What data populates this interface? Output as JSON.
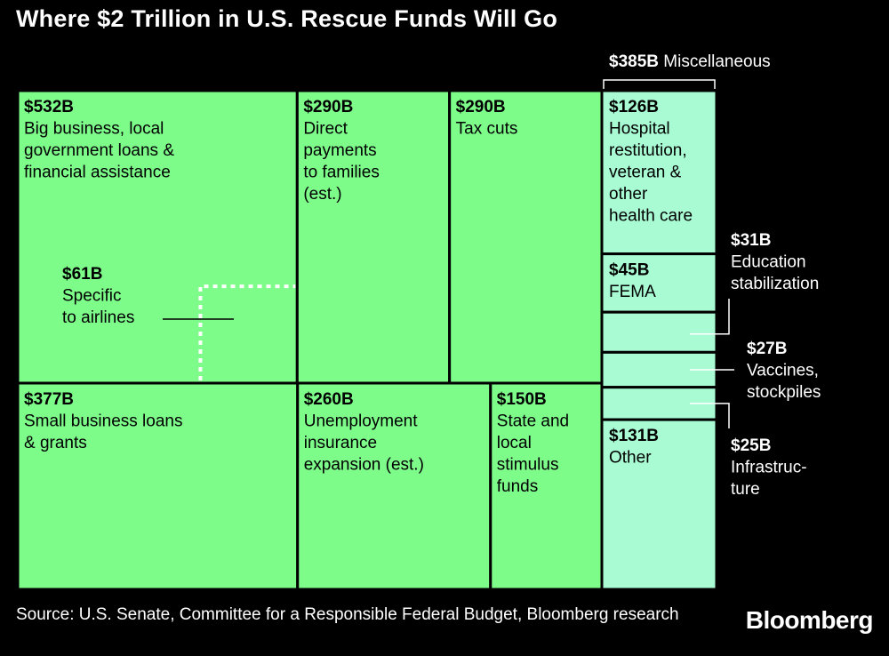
{
  "title": "Where $2 Trillion in U.S. Rescue Funds Will Go",
  "source": "Source: U.S. Senate, Committee for a Responsible Federal Budget, Bloomberg research",
  "brand": "Bloomberg",
  "colors": {
    "main_fill": "#7dfc8a",
    "misc_fill": "#a8fbd3",
    "border": "#000000",
    "background": "#000000",
    "text_dark": "#000000",
    "text_light": "#ffffff"
  },
  "chart_data": {
    "type": "treemap",
    "unit": "$B",
    "total_label": "$2 Trillion",
    "cells": [
      {
        "id": "big-business",
        "value": 532,
        "value_label": "$532B",
        "label_lines": [
          "Big business, local",
          "government loans &",
          "financial assistance"
        ]
      },
      {
        "id": "direct-payments",
        "value": 290,
        "value_label": "$290B",
        "label_lines": [
          "Direct",
          "payments",
          "to families",
          "(est.)"
        ]
      },
      {
        "id": "tax-cuts",
        "value": 290,
        "value_label": "$290B",
        "label_lines": [
          "Tax cuts"
        ]
      },
      {
        "id": "small-business",
        "value": 377,
        "value_label": "$377B",
        "label_lines": [
          "Small business loans",
          "& grants"
        ]
      },
      {
        "id": "unemployment",
        "value": 260,
        "value_label": "$260B",
        "label_lines": [
          "Unemployment",
          "insurance",
          "expansion (est.)"
        ]
      },
      {
        "id": "state-local",
        "value": 150,
        "value_label": "$150B",
        "label_lines": [
          "State and",
          "local",
          "stimulus",
          "funds"
        ]
      }
    ],
    "subset": {
      "value": 61,
      "value_label": "$61B",
      "label_lines": [
        "Specific",
        "to airlines"
      ],
      "parent": "big-business"
    },
    "misc": {
      "value": 385,
      "value_label": "$385B",
      "label": "Miscellaneous",
      "cells": [
        {
          "id": "hospital",
          "value": 126,
          "value_label": "$126B",
          "label_lines": [
            "Hospital",
            "restitution,",
            "veteran &",
            "other",
            "health care"
          ],
          "callout": false
        },
        {
          "id": "fema",
          "value": 45,
          "value_label": "$45B",
          "label_lines": [
            "FEMA"
          ],
          "callout": false
        },
        {
          "id": "education",
          "value": 31,
          "value_label": "$31B",
          "label_lines": [
            "Education",
            "stabilization"
          ],
          "callout": true
        },
        {
          "id": "vaccines",
          "value": 27,
          "value_label": "$27B",
          "label_lines": [
            "Vaccines,",
            "stockpiles"
          ],
          "callout": true
        },
        {
          "id": "infrastructure",
          "value": 25,
          "value_label": "$25B",
          "label_lines": [
            "Infrastruc-",
            "ture"
          ],
          "callout": true
        },
        {
          "id": "other",
          "value": 131,
          "value_label": "$131B",
          "label_lines": [
            "Other"
          ],
          "callout": false
        }
      ]
    }
  }
}
